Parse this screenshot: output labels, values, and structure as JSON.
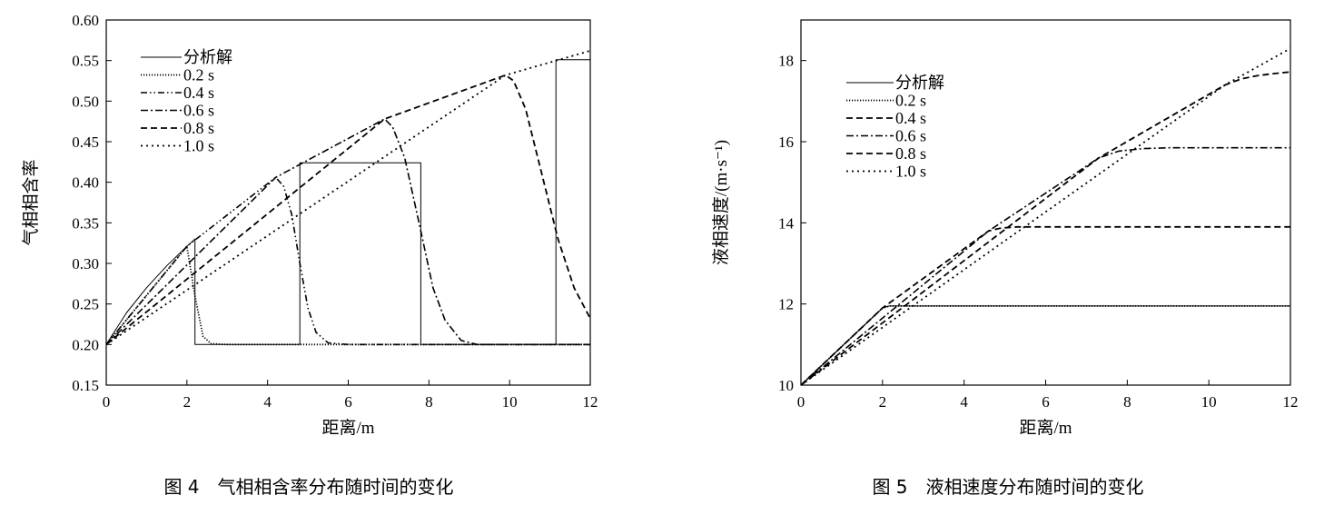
{
  "chart_data": [
    {
      "type": "line",
      "xlabel": "距离/m",
      "ylabel": "气相相含率",
      "xlim": [
        0,
        12
      ],
      "ylim": [
        0.15,
        0.6
      ],
      "xticks": [
        "0",
        "2",
        "4",
        "6",
        "8",
        "10",
        "12"
      ],
      "yticks": [
        "0.15",
        "0.20",
        "0.25",
        "0.30",
        "0.35",
        "0.40",
        "0.45",
        "0.50",
        "0.55",
        "0.60"
      ],
      "caption": "图 4　气相相含率分布随时间的变化",
      "legend_position": "top-left",
      "series": [
        {
          "name": "分析解",
          "dash": "solid",
          "x": [
            0,
            0.5,
            1,
            1.5,
            2,
            2.2,
            2.2,
            4.8,
            4.8,
            7.8,
            7.8,
            11.15,
            11.15,
            12
          ],
          "y": [
            0.2,
            0.239,
            0.27,
            0.297,
            0.321,
            0.33,
            0.2,
            0.2,
            0.424,
            0.424,
            0.2,
            0.2,
            0.551,
            0.551
          ]
        },
        {
          "name": "0.2 s",
          "dash": "dotted",
          "x": [
            0,
            2,
            2.2,
            2.4,
            2.6,
            3,
            12
          ],
          "y": [
            0.2,
            0.321,
            0.26,
            0.21,
            0.201,
            0.2,
            0.2
          ]
        },
        {
          "name": "0.4 s",
          "dash": "dashdotdot",
          "x": [
            0,
            2,
            4.2,
            4.4,
            4.6,
            4.8,
            5.0,
            5.2,
            5.5,
            6,
            12
          ],
          "y": [
            0.2,
            0.321,
            0.406,
            0.395,
            0.36,
            0.3,
            0.245,
            0.215,
            0.202,
            0.2,
            0.2
          ]
        },
        {
          "name": "0.6 s",
          "dash": "dashdot",
          "x": [
            0,
            4.2,
            6.9,
            7.1,
            7.4,
            7.8,
            8.1,
            8.4,
            8.8,
            9.2,
            12
          ],
          "y": [
            0.2,
            0.406,
            0.478,
            0.468,
            0.43,
            0.34,
            0.27,
            0.23,
            0.205,
            0.2,
            0.2
          ]
        },
        {
          "name": "0.8 s",
          "dash": "dashed",
          "x": [
            0,
            6.9,
            9.9,
            10.1,
            10.4,
            10.8,
            11.2,
            11.6,
            12
          ],
          "y": [
            0.2,
            0.478,
            0.532,
            0.525,
            0.49,
            0.41,
            0.33,
            0.27,
            0.232
          ]
        },
        {
          "name": "1.0 s",
          "dash": "finedot",
          "x": [
            0,
            9.9,
            12
          ],
          "y": [
            0.2,
            0.532,
            0.562
          ]
        }
      ]
    },
    {
      "type": "line",
      "xlabel": "距离/m",
      "ylabel": "液相速度/(m·s⁻¹)",
      "xlim": [
        0,
        12
      ],
      "ylim": [
        10,
        19
      ],
      "xticks": [
        "0",
        "2",
        "4",
        "6",
        "8",
        "10",
        "12"
      ],
      "yticks": [
        "10",
        "12",
        "14",
        "16",
        "18"
      ],
      "caption": "图 5　液相速度分布随时间的变化",
      "legend_position": "top-left",
      "series": [
        {
          "name": "分析解",
          "dash": "solid",
          "x": [
            0,
            2,
            2.15,
            12
          ],
          "y": [
            10,
            11.9,
            11.95,
            11.95
          ]
        },
        {
          "name": "0.2 s",
          "dash": "dotted",
          "x": [
            0,
            2,
            2.2,
            12
          ],
          "y": [
            10,
            11.9,
            11.95,
            11.95
          ]
        },
        {
          "name": "0.4 s",
          "dash": "dashed",
          "x": [
            0,
            2,
            4.6,
            4.9,
            5.3,
            12
          ],
          "y": [
            10,
            11.9,
            13.8,
            13.87,
            13.9,
            13.9
          ]
        },
        {
          "name": "0.6 s",
          "dash": "dashdot",
          "x": [
            0,
            4.6,
            7.3,
            7.8,
            8.4,
            9,
            12
          ],
          "y": [
            10,
            13.8,
            15.6,
            15.77,
            15.83,
            15.85,
            15.85
          ]
        },
        {
          "name": "0.8 s",
          "dash": "dashed",
          "x": [
            0,
            7.3,
            10.4,
            10.8,
            11.2,
            11.6,
            12
          ],
          "y": [
            10,
            15.6,
            17.4,
            17.55,
            17.63,
            17.68,
            17.72
          ]
        },
        {
          "name": "1.0 s",
          "dash": "finedot",
          "x": [
            0,
            10.4,
            12
          ],
          "y": [
            10,
            17.4,
            18.3
          ]
        }
      ]
    }
  ]
}
